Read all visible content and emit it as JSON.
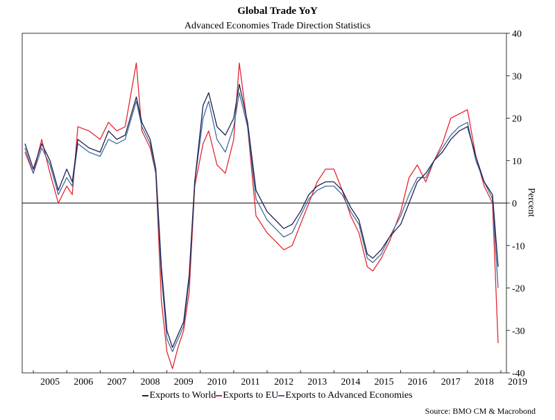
{
  "title": "Global Trade YoY",
  "subtitle": "Advanced Economies Trade Direction Statistics",
  "source": "Source: BMO CM & Macrobond",
  "colors": {
    "world": "#1d1f4e",
    "eu": "#e2262e",
    "advanced": "#3f6c9e",
    "axis": "#000000"
  },
  "chart_data": {
    "type": "line",
    "title": "Global Trade YoY",
    "subtitle": "Advanced Economies Trade Direction Statistics",
    "ylabel": "Percent",
    "ylim": [
      -40,
      40
    ],
    "yticks": [
      -40,
      -30,
      -20,
      -10,
      0,
      10,
      20,
      30,
      40
    ],
    "xlim": [
      "2004-09",
      "2019-03"
    ],
    "xtick_labels": [
      "2005",
      "2006",
      "2007",
      "2008",
      "2009",
      "2010",
      "2011",
      "2012",
      "2013",
      "2014",
      "2015",
      "2016",
      "2017",
      "2018",
      "2019"
    ],
    "grid": false,
    "legend_position": "bottom",
    "series": [
      {
        "name": "Exports to World",
        "color": "#1d1f4e",
        "points": [
          [
            "2004-10",
            14
          ],
          [
            "2005-01",
            8
          ],
          [
            "2005-04",
            14
          ],
          [
            "2005-07",
            10
          ],
          [
            "2005-10",
            3
          ],
          [
            "2006-01",
            8
          ],
          [
            "2006-03",
            5
          ],
          [
            "2006-05",
            15
          ],
          [
            "2006-09",
            13
          ],
          [
            "2007-01",
            12
          ],
          [
            "2007-04",
            17
          ],
          [
            "2007-07",
            15
          ],
          [
            "2007-10",
            16
          ],
          [
            "2008-02",
            25
          ],
          [
            "2008-04",
            19
          ],
          [
            "2008-07",
            15
          ],
          [
            "2008-09",
            8
          ],
          [
            "2008-11",
            -15
          ],
          [
            "2009-01",
            -30
          ],
          [
            "2009-03",
            -34
          ],
          [
            "2009-05",
            -31
          ],
          [
            "2009-07",
            -28
          ],
          [
            "2009-09",
            -17
          ],
          [
            "2009-11",
            5
          ],
          [
            "2010-02",
            23
          ],
          [
            "2010-04",
            26
          ],
          [
            "2010-07",
            18
          ],
          [
            "2010-10",
            16
          ],
          [
            "2011-01",
            20
          ],
          [
            "2011-03",
            28
          ],
          [
            "2011-06",
            19
          ],
          [
            "2011-09",
            3
          ],
          [
            "2012-01",
            -2
          ],
          [
            "2012-04",
            -4
          ],
          [
            "2012-07",
            -6
          ],
          [
            "2012-10",
            -5
          ],
          [
            "2013-01",
            -2
          ],
          [
            "2013-04",
            2
          ],
          [
            "2013-07",
            4
          ],
          [
            "2013-10",
            5
          ],
          [
            "2014-01",
            5
          ],
          [
            "2014-04",
            3
          ],
          [
            "2014-07",
            -1
          ],
          [
            "2014-10",
            -4
          ],
          [
            "2015-01",
            -12
          ],
          [
            "2015-03",
            -13
          ],
          [
            "2015-06",
            -11
          ],
          [
            "2015-09",
            -8
          ],
          [
            "2016-01",
            -5
          ],
          [
            "2016-04",
            0
          ],
          [
            "2016-07",
            5
          ],
          [
            "2016-10",
            7
          ],
          [
            "2017-01",
            10
          ],
          [
            "2017-04",
            12
          ],
          [
            "2017-07",
            15
          ],
          [
            "2017-10",
            17
          ],
          [
            "2018-01",
            18
          ],
          [
            "2018-04",
            11
          ],
          [
            "2018-07",
            5
          ],
          [
            "2018-10",
            2
          ],
          [
            "2018-12",
            -15
          ]
        ]
      },
      {
        "name": "Exports to EU",
        "color": "#e2262e",
        "points": [
          [
            "2004-10",
            12
          ],
          [
            "2005-01",
            7
          ],
          [
            "2005-04",
            15
          ],
          [
            "2005-07",
            7
          ],
          [
            "2005-10",
            0
          ],
          [
            "2006-01",
            4
          ],
          [
            "2006-03",
            2
          ],
          [
            "2006-05",
            18
          ],
          [
            "2006-09",
            17
          ],
          [
            "2007-01",
            15
          ],
          [
            "2007-04",
            19
          ],
          [
            "2007-07",
            17
          ],
          [
            "2007-10",
            18
          ],
          [
            "2008-02",
            33
          ],
          [
            "2008-04",
            17
          ],
          [
            "2008-07",
            13
          ],
          [
            "2008-09",
            7
          ],
          [
            "2008-11",
            -23
          ],
          [
            "2009-01",
            -35
          ],
          [
            "2009-03",
            -39
          ],
          [
            "2009-05",
            -34
          ],
          [
            "2009-07",
            -30
          ],
          [
            "2009-09",
            -21
          ],
          [
            "2009-11",
            4
          ],
          [
            "2010-02",
            14
          ],
          [
            "2010-04",
            17
          ],
          [
            "2010-07",
            9
          ],
          [
            "2010-10",
            7
          ],
          [
            "2011-01",
            15
          ],
          [
            "2011-03",
            33
          ],
          [
            "2011-06",
            18
          ],
          [
            "2011-09",
            -3
          ],
          [
            "2012-01",
            -7
          ],
          [
            "2012-04",
            -9
          ],
          [
            "2012-07",
            -11
          ],
          [
            "2012-10",
            -10
          ],
          [
            "2013-01",
            -5
          ],
          [
            "2013-04",
            0
          ],
          [
            "2013-07",
            5
          ],
          [
            "2013-10",
            8
          ],
          [
            "2014-01",
            8
          ],
          [
            "2014-04",
            3
          ],
          [
            "2014-07",
            -3
          ],
          [
            "2014-10",
            -7
          ],
          [
            "2015-01",
            -15
          ],
          [
            "2015-03",
            -16
          ],
          [
            "2015-06",
            -13
          ],
          [
            "2015-09",
            -9
          ],
          [
            "2016-01",
            -2
          ],
          [
            "2016-04",
            6
          ],
          [
            "2016-07",
            9
          ],
          [
            "2016-10",
            5
          ],
          [
            "2017-01",
            10
          ],
          [
            "2017-04",
            14
          ],
          [
            "2017-07",
            20
          ],
          [
            "2017-10",
            21
          ],
          [
            "2018-01",
            22
          ],
          [
            "2018-04",
            11
          ],
          [
            "2018-07",
            4
          ],
          [
            "2018-10",
            0
          ],
          [
            "2018-12",
            -33
          ]
        ]
      },
      {
        "name": "Exports to Advanced Economies",
        "color": "#3f6c9e",
        "points": [
          [
            "2004-10",
            13
          ],
          [
            "2005-01",
            7
          ],
          [
            "2005-04",
            13
          ],
          [
            "2005-07",
            9
          ],
          [
            "2005-10",
            2
          ],
          [
            "2006-01",
            6
          ],
          [
            "2006-03",
            4
          ],
          [
            "2006-05",
            14
          ],
          [
            "2006-09",
            12
          ],
          [
            "2007-01",
            11
          ],
          [
            "2007-04",
            15
          ],
          [
            "2007-07",
            14
          ],
          [
            "2007-10",
            15
          ],
          [
            "2008-02",
            24
          ],
          [
            "2008-04",
            18
          ],
          [
            "2008-07",
            14
          ],
          [
            "2008-09",
            7
          ],
          [
            "2008-11",
            -17
          ],
          [
            "2009-01",
            -32
          ],
          [
            "2009-03",
            -35
          ],
          [
            "2009-05",
            -32
          ],
          [
            "2009-07",
            -29
          ],
          [
            "2009-09",
            -18
          ],
          [
            "2009-11",
            5
          ],
          [
            "2010-02",
            20
          ],
          [
            "2010-04",
            24
          ],
          [
            "2010-07",
            15
          ],
          [
            "2010-10",
            12
          ],
          [
            "2011-01",
            18
          ],
          [
            "2011-03",
            26
          ],
          [
            "2011-06",
            18
          ],
          [
            "2011-09",
            1
          ],
          [
            "2012-01",
            -4
          ],
          [
            "2012-04",
            -6
          ],
          [
            "2012-07",
            -8
          ],
          [
            "2012-10",
            -7
          ],
          [
            "2013-01",
            -3
          ],
          [
            "2013-04",
            1
          ],
          [
            "2013-07",
            3
          ],
          [
            "2013-10",
            4
          ],
          [
            "2014-01",
            4
          ],
          [
            "2014-04",
            2
          ],
          [
            "2014-07",
            -2
          ],
          [
            "2014-10",
            -5
          ],
          [
            "2015-01",
            -13
          ],
          [
            "2015-03",
            -14
          ],
          [
            "2015-06",
            -12
          ],
          [
            "2015-09",
            -8
          ],
          [
            "2016-01",
            -3
          ],
          [
            "2016-04",
            2
          ],
          [
            "2016-07",
            6
          ],
          [
            "2016-10",
            6
          ],
          [
            "2017-01",
            10
          ],
          [
            "2017-04",
            13
          ],
          [
            "2017-07",
            16
          ],
          [
            "2017-10",
            18
          ],
          [
            "2018-01",
            19
          ],
          [
            "2018-04",
            10
          ],
          [
            "2018-07",
            5
          ],
          [
            "2018-10",
            1
          ],
          [
            "2018-12",
            -20
          ]
        ]
      }
    ]
  }
}
